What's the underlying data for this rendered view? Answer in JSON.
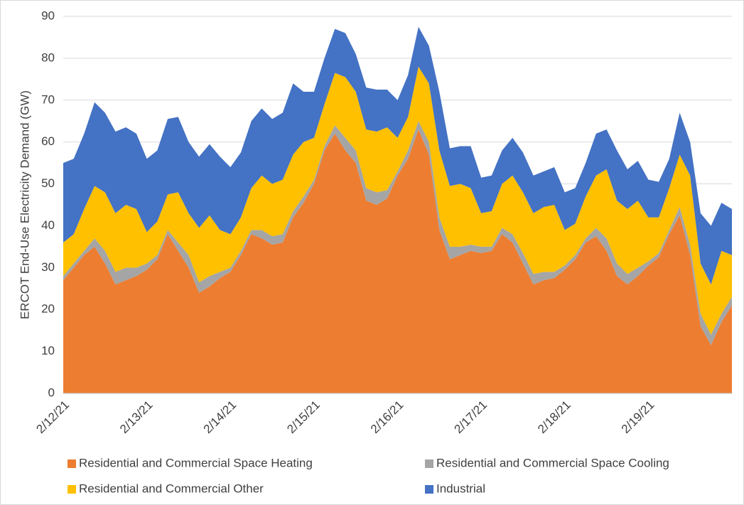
{
  "chart_data": {
    "type": "stacked_area",
    "y_label": "ERCOT End-Use Electricity Demand (GW)",
    "categories": [
      "2/12/21",
      null,
      null,
      null,
      null,
      null,
      null,
      null,
      "2/13/21",
      null,
      null,
      null,
      null,
      null,
      null,
      null,
      "2/14/21",
      null,
      null,
      null,
      null,
      null,
      null,
      null,
      "2/15/21",
      null,
      null,
      null,
      null,
      null,
      null,
      null,
      "2/16/21",
      null,
      null,
      null,
      null,
      null,
      null,
      null,
      "2/17/21",
      null,
      null,
      null,
      null,
      null,
      null,
      null,
      "2/18/21",
      null,
      null,
      null,
      null,
      null,
      null,
      null,
      "2/19/21",
      null,
      null,
      null,
      null,
      null,
      null,
      null,
      null
    ],
    "series": [
      {
        "name": "Residential and Commercial Space Heating",
        "color": "#ed7d31",
        "values": [
          27,
          30,
          33,
          35,
          31,
          26,
          27,
          28,
          29.5,
          32,
          38,
          34,
          30,
          24,
          25.5,
          27.5,
          29,
          33,
          38,
          37,
          35.5,
          36,
          42,
          45.5,
          50,
          58,
          62,
          58,
          55,
          46,
          45,
          46.5,
          52,
          56,
          63,
          57,
          39,
          32,
          33,
          34,
          33.5,
          34,
          38,
          36,
          31,
          26,
          27,
          27.5,
          29.5,
          32,
          36,
          37.5,
          34,
          28,
          26,
          28,
          30.5,
          32.5,
          38,
          42.5,
          33,
          16,
          11.5,
          17,
          21
        ]
      },
      {
        "name": "Residential and Commercial Space Cooling",
        "color": "#a5a5a5",
        "values": [
          1,
          1,
          1,
          2,
          3,
          3,
          3,
          2,
          1.5,
          1,
          1,
          2,
          3,
          2.5,
          2.5,
          1.5,
          1,
          1,
          1,
          2,
          2,
          2,
          1.5,
          1.5,
          1,
          1,
          2,
          3,
          3,
          3,
          3,
          2,
          1,
          2,
          2,
          3,
          3,
          3,
          2,
          1.5,
          1.5,
          1,
          1.5,
          2,
          2.5,
          2.5,
          2,
          1.5,
          1,
          1,
          1,
          2,
          3,
          3,
          2.5,
          2,
          1,
          1,
          1,
          2,
          2.5,
          3,
          2.5,
          2,
          2
        ]
      },
      {
        "name": "Residential and Commercial Other",
        "color": "#ffc000",
        "values": [
          8,
          7,
          10,
          12.5,
          14,
          14,
          15,
          14,
          7.5,
          8,
          8.5,
          12,
          10,
          13,
          14.5,
          10,
          8,
          8,
          10,
          13,
          12.5,
          13,
          13.5,
          13,
          10,
          10,
          12.5,
          14.5,
          14,
          14,
          14.5,
          15,
          8,
          8,
          13,
          14,
          16,
          14.5,
          15,
          13.5,
          8,
          8.5,
          10.5,
          14,
          14.5,
          14.5,
          15.5,
          16,
          8.5,
          7.5,
          10,
          12.5,
          16.5,
          15,
          15.5,
          16,
          10.5,
          8.5,
          10,
          12.5,
          16.5,
          12,
          12,
          15,
          10
        ]
      },
      {
        "name": "Industrial",
        "color": "#4472c4",
        "values": [
          19,
          18,
          18,
          20,
          19,
          19.5,
          18.5,
          18,
          17.5,
          17,
          18,
          18,
          17,
          17,
          17,
          17.5,
          16,
          15.5,
          16,
          16,
          15.5,
          16,
          17,
          12,
          11,
          11,
          10.5,
          10.5,
          9,
          10,
          10,
          9,
          9,
          10,
          9.5,
          9,
          14,
          9,
          9,
          10,
          8.5,
          8.5,
          8,
          9,
          9.5,
          9,
          8.5,
          9,
          9,
          8.5,
          8,
          10,
          9.5,
          12,
          9.5,
          9.5,
          9,
          8.5,
          7,
          10,
          8,
          12,
          14,
          11.5,
          11
        ]
      }
    ],
    "ylim": [
      0,
      90
    ],
    "yticks": [
      0,
      10,
      20,
      30,
      40,
      50,
      60,
      70,
      80,
      90
    ],
    "grid": true
  }
}
